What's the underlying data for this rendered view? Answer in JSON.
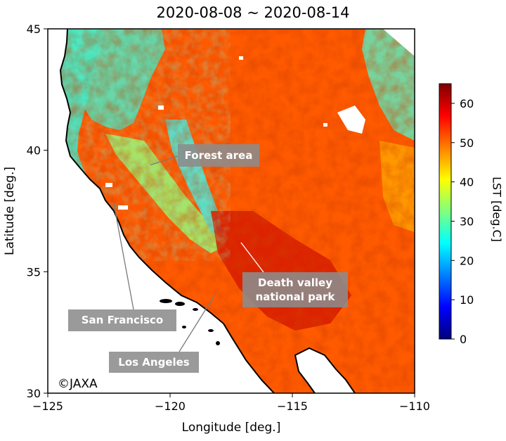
{
  "title": "2020-08-08 ~ 2020-08-14",
  "axes": {
    "xlabel": "Longitude [deg.]",
    "ylabel": "Latitude [deg.]",
    "xlim": [
      -125,
      -110
    ],
    "ylim": [
      30,
      45
    ],
    "xticks": [
      {
        "value": -125,
        "label": "−125"
      },
      {
        "value": -120,
        "label": "−120"
      },
      {
        "value": -115,
        "label": "−115"
      },
      {
        "value": -110,
        "label": "−110"
      }
    ],
    "yticks": [
      {
        "value": 30,
        "label": "30"
      },
      {
        "value": 35,
        "label": "35"
      },
      {
        "value": 40,
        "label": "40"
      },
      {
        "value": 45,
        "label": "45"
      }
    ]
  },
  "colorbar": {
    "label": "LST [deg.C]",
    "range": [
      0,
      65
    ],
    "ticks": [
      0,
      10,
      20,
      30,
      40,
      50,
      60
    ],
    "colormap": "jet",
    "stops": [
      "#00007f",
      "#0000ff",
      "#007fff",
      "#00ffff",
      "#7fff7f",
      "#ffff00",
      "#ff7f00",
      "#ff0000",
      "#7f0000"
    ]
  },
  "annotations": [
    {
      "id": "forest",
      "label": "Forest area",
      "lon": -120.8,
      "lat": 39.4
    },
    {
      "id": "death-valley",
      "label": "Death valley\nnational park",
      "lon": -117.1,
      "lat": 36.2
    },
    {
      "id": "san-francisco",
      "label": "San Francisco",
      "lon": -122.3,
      "lat": 37.8
    },
    {
      "id": "los-angeles",
      "label": "Los Angeles",
      "lon": -118.2,
      "lat": 34.0
    }
  ],
  "credit": "©JAXA",
  "colors": {
    "ocean": "#ffffff",
    "coast": "#000000",
    "callout_bg": "#8c8c8c",
    "callout_text": "#ffffff"
  }
}
